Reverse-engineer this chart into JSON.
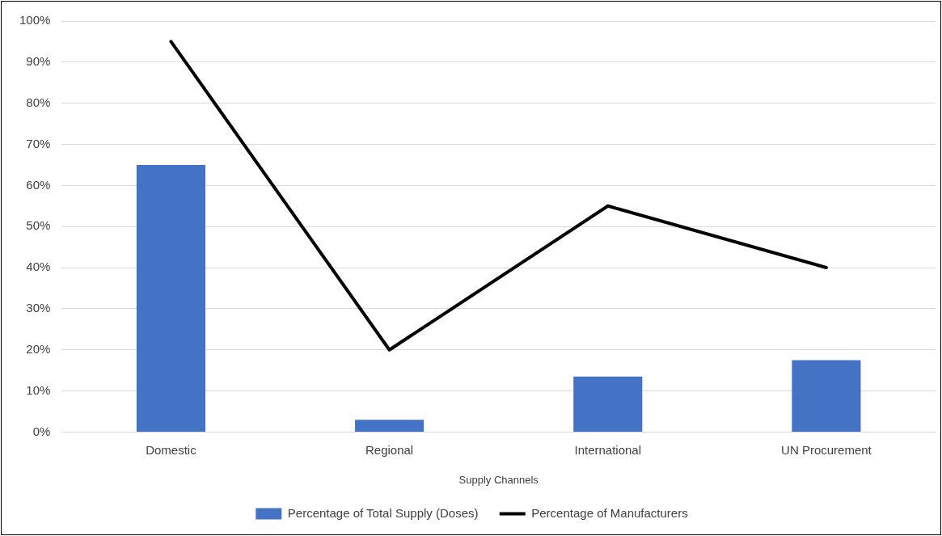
{
  "chart_data": {
    "type": "bar",
    "xlabel": "Supply Channels",
    "categories": [
      "Domestic",
      "Regional",
      "International",
      "UN Procurement"
    ],
    "series": [
      {
        "name": "Percentage of Total Supply (Doses)",
        "color": "#4472c4",
        "values": [
          65,
          3,
          13.5,
          17.5
        ]
      },
      {
        "name": "Percentage of Manufacturers",
        "type": "line",
        "color": "#000000",
        "values": [
          95,
          20,
          55,
          40
        ]
      }
    ],
    "ylim": [
      0,
      100
    ],
    "yticks": [
      {
        "value": 0,
        "label": "0%"
      },
      {
        "value": 10,
        "label": "10%"
      },
      {
        "value": 20,
        "label": "20%"
      },
      {
        "value": 30,
        "label": "30%"
      },
      {
        "value": 40,
        "label": "40%"
      },
      {
        "value": 50,
        "label": "50%"
      },
      {
        "value": 60,
        "label": "60%"
      },
      {
        "value": 70,
        "label": "70%"
      },
      {
        "value": 80,
        "label": "80%"
      },
      {
        "value": 90,
        "label": "90%"
      },
      {
        "value": 100,
        "label": "100%"
      }
    ],
    "grid": "y",
    "legend": "bottom",
    "marker": "none",
    "line_style": "solid"
  }
}
